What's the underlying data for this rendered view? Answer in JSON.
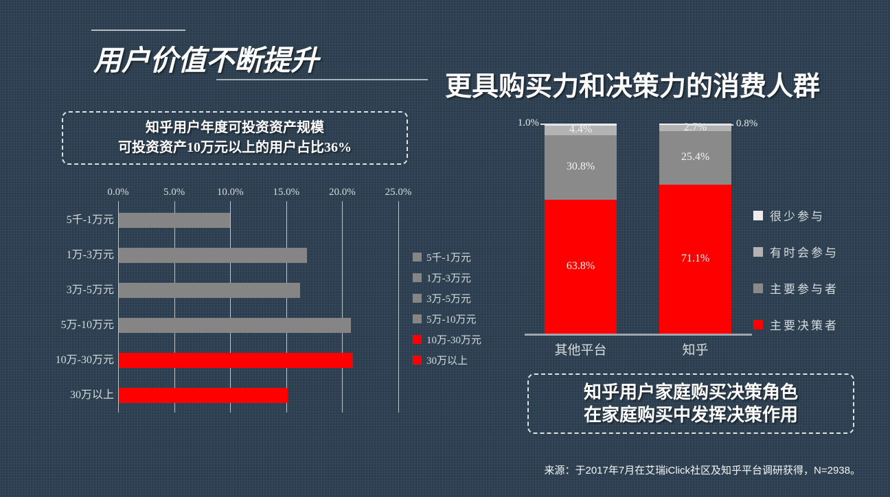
{
  "header": {
    "title": "用户价值不断提升",
    "subtitle": "更具购买力和决策力的消费人群"
  },
  "footer": {
    "source": "来源：于2017年7月在艾瑞iClick社区及知乎平台调研获得，N=2938。"
  },
  "colors": {
    "background": "#2d4051",
    "bar_gray": "#858585",
    "bar_red": "#ff0000",
    "segment_gray": "#8a8a8a",
    "segment_light_gray": "#b3b3b3",
    "segment_white": "#ececec",
    "light_text": "#d6dbde"
  },
  "chart_data": [
    {
      "type": "bar",
      "orientation": "horizontal",
      "title": "知乎用户年度可投资资产规模",
      "subtitle": "可投资资产10万元以上的用户占比36%",
      "categories": [
        "5千-1万元",
        "1万-3万元",
        "3万-5万元",
        "5万-10万元",
        "10万-30万元",
        "30万以上"
      ],
      "values": [
        9.9,
        16.8,
        16.2,
        20.7,
        20.9,
        15.1
      ],
      "unit": "%",
      "bar_colors": [
        "#858585",
        "#858585",
        "#858585",
        "#858585",
        "#ff0000",
        "#ff0000"
      ],
      "xlim": [
        0,
        25
      ],
      "xticks": [
        "0.0%",
        "5.0%",
        "10.0%",
        "15.0%",
        "20.0%",
        "25.0%"
      ],
      "grid": "vertical",
      "legend_position": "right",
      "legend": [
        {
          "label": "5千-1万元",
          "color": "#858585"
        },
        {
          "label": "1万-3万元",
          "color": "#858585"
        },
        {
          "label": "3万-5万元",
          "color": "#858585"
        },
        {
          "label": "5万-10万元",
          "color": "#858585"
        },
        {
          "label": "10万-30万元",
          "color": "#ff0000"
        },
        {
          "label": "30万以上",
          "color": "#ff0000"
        }
      ]
    },
    {
      "type": "bar",
      "stacked": true,
      "orientation": "vertical",
      "title": "知乎用户家庭购买决策角色",
      "subtitle": "在家庭购买中发挥决策作用",
      "categories": [
        "其他平台",
        "知乎"
      ],
      "series": [
        {
          "name": "主要决策者",
          "color": "#ff0000",
          "values": [
            63.8,
            71.1
          ]
        },
        {
          "name": "主要参与者",
          "color": "#8a8a8a",
          "values": [
            30.8,
            25.4
          ]
        },
        {
          "name": "有时会参与",
          "color": "#b3b3b3",
          "values": [
            4.4,
            2.7
          ]
        },
        {
          "name": "很少参与",
          "color": "#ececec",
          "values": [
            1.0,
            0.8
          ]
        }
      ],
      "legend_order_top_to_bottom": [
        "很少参与",
        "有时会参与",
        "主要参与者",
        "主要决策者"
      ],
      "ylim": [
        0,
        100
      ],
      "unit": "%",
      "legend_position": "right",
      "outside_labels": [
        "1.0%",
        "0.8%"
      ]
    }
  ]
}
